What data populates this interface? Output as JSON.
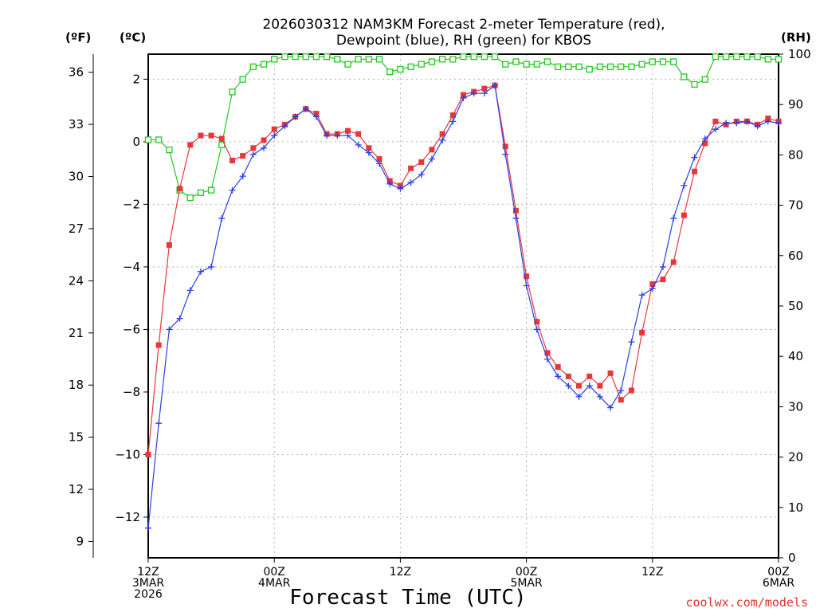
{
  "chart_data": {
    "type": "line",
    "title_line1": "2026030312 NAM3KM Forecast 2-meter Temperature (red),",
    "title_line2": "Dewpoint (blue), RH (green) for KBOS",
    "xlabel": "Forecast Time (UTC)",
    "credit": "coolwx.com/models",
    "units": {
      "fahrenheit": "(ºF)",
      "celsius": "(ºC)",
      "rh": "(RH)"
    },
    "x_hours_range": [
      0,
      60
    ],
    "y_celsius_range": [
      -13.3,
      2.8
    ],
    "y_rh_range": [
      0,
      100
    ],
    "fahrenheit_ticks": [
      "9",
      "12",
      "15",
      "18",
      "21",
      "24",
      "27",
      "30",
      "33",
      "36"
    ],
    "celsius_ticks": [
      "−12",
      "−10",
      "−8",
      "−6",
      "−4",
      "−2",
      "0",
      "2"
    ],
    "rh_ticks": [
      "0",
      "10",
      "20",
      "30",
      "40",
      "50",
      "60",
      "70",
      "80",
      "90",
      "100"
    ],
    "x_ticks": [
      {
        "hour": 0,
        "line1": "12Z",
        "line2": "3MAR",
        "line3": "2026"
      },
      {
        "hour": 12,
        "line1": "00Z",
        "line2": "4MAR",
        "line3": ""
      },
      {
        "hour": 24,
        "line1": "12Z",
        "line2": "",
        "line3": ""
      },
      {
        "hour": 36,
        "line1": "00Z",
        "line2": "5MAR",
        "line3": ""
      },
      {
        "hour": 48,
        "line1": "12Z",
        "line2": "",
        "line3": ""
      },
      {
        "hour": 60,
        "line1": "00Z",
        "line2": "6MAR",
        "line3": ""
      }
    ],
    "colors": {
      "temperature": "#e8363a",
      "dewpoint": "#2a40e0",
      "rh": "#22c822",
      "grid": "#b4b4b4",
      "axis": "#000000"
    },
    "series": [
      {
        "name": "Temperature (C)",
        "x": [
          0,
          1,
          2,
          3,
          4,
          5,
          6,
          7,
          8,
          9,
          10,
          11,
          12,
          13,
          14,
          15,
          16,
          17,
          18,
          19,
          20,
          21,
          22,
          23,
          24,
          25,
          26,
          27,
          28,
          29,
          30,
          31,
          32,
          33,
          34,
          35,
          36,
          37,
          38,
          39,
          40,
          41,
          42,
          43,
          44,
          45,
          46,
          47,
          48,
          49,
          50,
          51,
          52,
          53,
          54,
          55,
          56,
          57,
          58,
          59,
          60
        ],
        "values": [
          -10.0,
          -6.5,
          -3.3,
          -1.5,
          -0.1,
          0.2,
          0.2,
          0.1,
          -0.6,
          -0.45,
          -0.2,
          0.05,
          0.4,
          0.55,
          0.8,
          1.05,
          0.9,
          0.25,
          0.25,
          0.35,
          0.25,
          -0.2,
          -0.55,
          -1.25,
          -1.4,
          -0.85,
          -0.65,
          -0.25,
          0.25,
          0.85,
          1.5,
          1.6,
          1.7,
          1.8,
          -0.15,
          -2.2,
          -4.3,
          -5.75,
          -6.75,
          -7.2,
          -7.5,
          -7.8,
          -7.5,
          -7.8,
          -7.4,
          -8.25,
          -7.95,
          -6.1,
          -4.55,
          -4.4,
          -3.85,
          -2.35,
          -0.95,
          -0.05,
          0.65,
          0.55,
          0.65,
          0.65,
          0.55,
          0.75,
          0.65
        ]
      },
      {
        "name": "Dewpoint (C)",
        "x": [
          0,
          1,
          2,
          3,
          4,
          5,
          6,
          7,
          8,
          9,
          10,
          11,
          12,
          13,
          14,
          15,
          16,
          17,
          18,
          19,
          20,
          21,
          22,
          23,
          24,
          25,
          26,
          27,
          28,
          29,
          30,
          31,
          32,
          33,
          34,
          35,
          36,
          37,
          38,
          39,
          40,
          41,
          42,
          43,
          44,
          45,
          46,
          47,
          48,
          49,
          50,
          51,
          52,
          53,
          54,
          55,
          56,
          57,
          58,
          59,
          60
        ],
        "values": [
          -12.35,
          -9.0,
          -6.0,
          -5.65,
          -4.75,
          -4.15,
          -4.0,
          -2.45,
          -1.55,
          -1.1,
          -0.4,
          -0.2,
          0.2,
          0.5,
          0.8,
          1.05,
          0.8,
          0.2,
          0.2,
          0.2,
          -0.1,
          -0.35,
          -0.7,
          -1.35,
          -1.5,
          -1.3,
          -1.05,
          -0.55,
          0.05,
          0.65,
          1.4,
          1.55,
          1.55,
          1.8,
          -0.4,
          -2.45,
          -4.6,
          -6.0,
          -6.95,
          -7.5,
          -7.8,
          -8.15,
          -7.8,
          -8.15,
          -8.5,
          -7.95,
          -6.4,
          -4.9,
          -4.7,
          -4.0,
          -2.45,
          -1.4,
          -0.5,
          0.1,
          0.4,
          0.6,
          0.6,
          0.65,
          0.5,
          0.65,
          0.6
        ]
      },
      {
        "name": "RH (%)",
        "x": [
          0,
          1,
          2,
          3,
          4,
          5,
          6,
          7,
          8,
          9,
          10,
          11,
          12,
          13,
          14,
          15,
          16,
          17,
          18,
          19,
          20,
          21,
          22,
          23,
          24,
          25,
          26,
          27,
          28,
          29,
          30,
          31,
          32,
          33,
          34,
          35,
          36,
          37,
          38,
          39,
          40,
          41,
          42,
          43,
          44,
          45,
          46,
          47,
          48,
          49,
          50,
          51,
          52,
          53,
          54,
          55,
          56,
          57,
          58,
          59,
          60
        ],
        "values": [
          83,
          83,
          81,
          73,
          71.5,
          72.5,
          73,
          82,
          92.5,
          95,
          97.5,
          98,
          99,
          99.5,
          99.5,
          99.5,
          99.5,
          99.5,
          99,
          98,
          99,
          99,
          99,
          96.5,
          97,
          97.5,
          98,
          98.5,
          99,
          99,
          99.5,
          99.5,
          99.5,
          99.5,
          98,
          98.5,
          98,
          98,
          98.5,
          97.5,
          97.5,
          97.5,
          97,
          97.5,
          97.5,
          97.5,
          97.5,
          98,
          98.5,
          98.5,
          98.5,
          95.5,
          94,
          95,
          99.5,
          99.5,
          99.5,
          99.5,
          99.5,
          99,
          99
        ]
      }
    ]
  }
}
